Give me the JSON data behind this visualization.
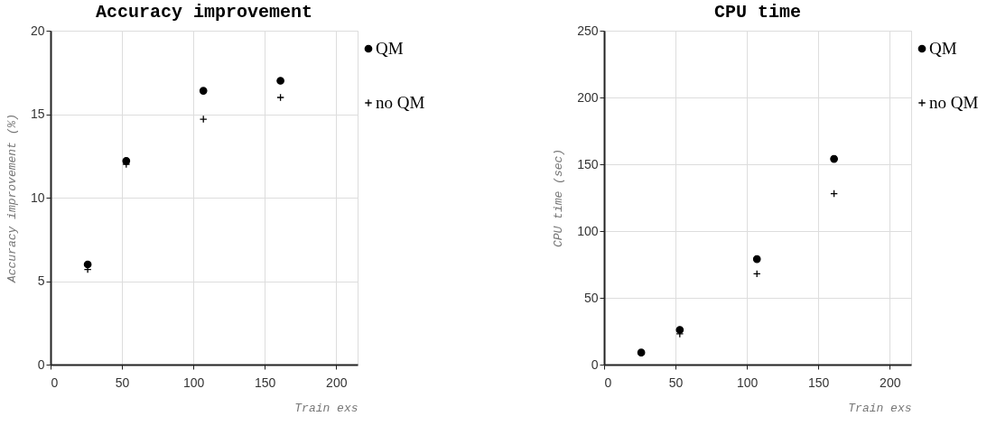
{
  "chart_data": [
    {
      "type": "scatter",
      "title": "Accuracy improvement",
      "xlabel": "Train exs",
      "ylabel": "Accuracy improvement (%)",
      "x": [
        26,
        53,
        107,
        161
      ],
      "series": [
        {
          "name": "QM",
          "color": "#000000",
          "marker": "circle",
          "values": [
            6.0,
            12.2,
            16.4,
            17.0
          ]
        },
        {
          "name": "no QM",
          "color": "#000000",
          "marker": "cross",
          "values": [
            5.7,
            12.0,
            14.7,
            16.0
          ]
        }
      ],
      "xlim": [
        0,
        215
      ],
      "ylim": [
        0,
        20
      ],
      "xticks": [
        0,
        50,
        100,
        150,
        200
      ],
      "yticks": [
        0,
        5,
        10,
        15,
        20
      ],
      "grid": true,
      "legend": "right"
    },
    {
      "type": "scatter",
      "title": "CPU time",
      "xlabel": "Train exs",
      "ylabel": "CPU time (sec)",
      "x": [
        26,
        53,
        107,
        161
      ],
      "series": [
        {
          "name": "QM",
          "color": "#000000",
          "marker": "circle",
          "values": [
            9,
            26,
            79,
            154
          ]
        },
        {
          "name": "no QM",
          "color": "#000000",
          "marker": "cross",
          "values": [
            null,
            23,
            68,
            128
          ]
        }
      ],
      "xlim": [
        0,
        215
      ],
      "ylim": [
        0,
        250
      ],
      "xticks": [
        0,
        50,
        100,
        150,
        200
      ],
      "yticks": [
        0,
        50,
        100,
        150,
        200,
        250
      ],
      "grid": true,
      "legend": "right"
    }
  ]
}
